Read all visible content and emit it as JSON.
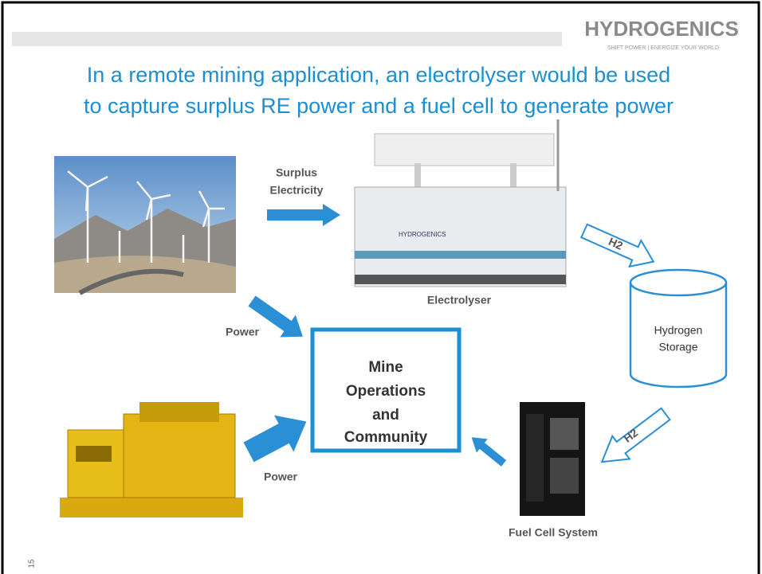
{
  "logo": {
    "name": "HYDROGENICS",
    "tagline": "SHIFT POWER | ENERGIZE YOUR WORLD"
  },
  "title": [
    "In a remote mining application, an electrolyser would be used",
    "to capture surplus RE power and a fuel cell to generate power"
  ],
  "labels": {
    "surplus": [
      "Surplus",
      "Electricity"
    ],
    "electrolyser": "Electrolyser",
    "h2_top": "H2",
    "h2_bottom": "H2",
    "storage": [
      "Hydrogen",
      "Storage"
    ],
    "power_top": "Power",
    "power_bottom": "Power",
    "mine": [
      "Mine",
      "Operations",
      "and",
      "Community"
    ],
    "fuel_cell": "Fuel Cell System"
  },
  "page_number": "15"
}
